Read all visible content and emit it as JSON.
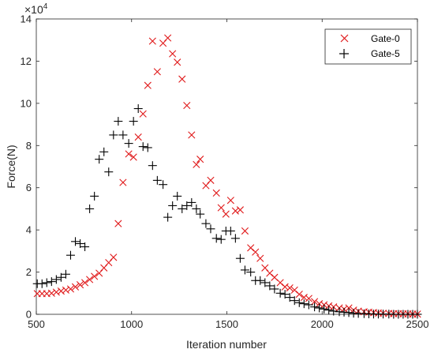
{
  "chart_data": {
    "type": "scatter",
    "title": "",
    "xlabel": "Iteration number",
    "ylabel": "Force(N)",
    "xlim": [
      500,
      2500
    ],
    "ylim": [
      0,
      14
    ],
    "y_multiplier": {
      "base": "×10",
      "exponent": "4"
    },
    "x_ticks": [
      500,
      1000,
      1500,
      2000,
      2500
    ],
    "y_ticks": [
      0,
      2,
      4,
      6,
      8,
      10,
      12,
      14
    ],
    "x_tick_labels": [
      "500",
      "1000",
      "1500",
      "2000",
      "2500"
    ],
    "y_tick_labels": [
      "0",
      "2",
      "4",
      "6",
      "8",
      "10",
      "12",
      "14"
    ],
    "grid": false,
    "legend_position": "top-right",
    "series": [
      {
        "name": "Gate-0",
        "marker": "x",
        "color": "#e0191a",
        "points": [
          [
            505,
            0.98
          ],
          [
            530,
            0.98
          ],
          [
            555,
            0.98
          ],
          [
            580,
            1.0
          ],
          [
            605,
            1.05
          ],
          [
            630,
            1.1
          ],
          [
            655,
            1.15
          ],
          [
            680,
            1.2
          ],
          [
            705,
            1.3
          ],
          [
            730,
            1.4
          ],
          [
            755,
            1.5
          ],
          [
            780,
            1.65
          ],
          [
            805,
            1.8
          ],
          [
            830,
            1.95
          ],
          [
            855,
            2.2
          ],
          [
            880,
            2.45
          ],
          [
            905,
            2.7
          ],
          [
            930,
            4.3
          ],
          [
            955,
            6.25
          ],
          [
            985,
            7.6
          ],
          [
            1010,
            7.45
          ],
          [
            1035,
            8.4
          ],
          [
            1060,
            9.5
          ],
          [
            1085,
            10.85
          ],
          [
            1110,
            12.95
          ],
          [
            1135,
            11.5
          ],
          [
            1165,
            12.85
          ],
          [
            1190,
            13.1
          ],
          [
            1215,
            12.35
          ],
          [
            1240,
            11.95
          ],
          [
            1265,
            11.15
          ],
          [
            1290,
            9.9
          ],
          [
            1315,
            8.5
          ],
          [
            1340,
            7.1
          ],
          [
            1360,
            7.35
          ],
          [
            1390,
            6.1
          ],
          [
            1415,
            6.35
          ],
          [
            1445,
            5.75
          ],
          [
            1470,
            5.05
          ],
          [
            1495,
            4.75
          ],
          [
            1520,
            5.4
          ],
          [
            1545,
            4.9
          ],
          [
            1570,
            4.95
          ],
          [
            1595,
            3.95
          ],
          [
            1625,
            3.15
          ],
          [
            1650,
            2.95
          ],
          [
            1675,
            2.65
          ],
          [
            1700,
            2.2
          ],
          [
            1725,
            1.95
          ],
          [
            1750,
            1.75
          ],
          [
            1780,
            1.5
          ],
          [
            1805,
            1.3
          ],
          [
            1830,
            1.25
          ],
          [
            1855,
            1.15
          ],
          [
            1880,
            0.95
          ],
          [
            1905,
            0.8
          ],
          [
            1930,
            0.75
          ],
          [
            1960,
            0.6
          ],
          [
            1985,
            0.5
          ],
          [
            2010,
            0.45
          ],
          [
            2035,
            0.4
          ],
          [
            2060,
            0.35
          ],
          [
            2090,
            0.3
          ],
          [
            2115,
            0.25
          ],
          [
            2140,
            0.3
          ],
          [
            2165,
            0.2
          ],
          [
            2190,
            0.15
          ],
          [
            2220,
            0.12
          ],
          [
            2245,
            0.1
          ],
          [
            2270,
            0.08
          ],
          [
            2295,
            0.06
          ],
          [
            2320,
            0.05
          ],
          [
            2350,
            0.04
          ],
          [
            2375,
            0.03
          ],
          [
            2400,
            0.03
          ],
          [
            2425,
            0.02
          ],
          [
            2450,
            0.02
          ],
          [
            2475,
            0.01
          ],
          [
            2500,
            0.01
          ]
        ]
      },
      {
        "name": "Gate-5",
        "marker": "+",
        "color": "#000000",
        "points": [
          [
            505,
            1.45
          ],
          [
            530,
            1.45
          ],
          [
            555,
            1.5
          ],
          [
            580,
            1.55
          ],
          [
            605,
            1.65
          ],
          [
            630,
            1.75
          ],
          [
            655,
            1.9
          ],
          [
            680,
            2.8
          ],
          [
            705,
            3.45
          ],
          [
            730,
            3.35
          ],
          [
            755,
            3.2
          ],
          [
            780,
            5.0
          ],
          [
            805,
            5.6
          ],
          [
            830,
            7.35
          ],
          [
            855,
            7.7
          ],
          [
            880,
            6.75
          ],
          [
            905,
            8.5
          ],
          [
            930,
            9.15
          ],
          [
            955,
            8.5
          ],
          [
            985,
            8.1
          ],
          [
            1010,
            9.15
          ],
          [
            1035,
            9.75
          ],
          [
            1060,
            7.95
          ],
          [
            1085,
            7.9
          ],
          [
            1110,
            7.05
          ],
          [
            1135,
            6.35
          ],
          [
            1165,
            6.15
          ],
          [
            1190,
            4.6
          ],
          [
            1215,
            5.15
          ],
          [
            1240,
            5.6
          ],
          [
            1265,
            5.0
          ],
          [
            1290,
            5.15
          ],
          [
            1315,
            5.3
          ],
          [
            1340,
            5.0
          ],
          [
            1360,
            4.75
          ],
          [
            1390,
            4.3
          ],
          [
            1415,
            4.05
          ],
          [
            1445,
            3.6
          ],
          [
            1470,
            3.55
          ],
          [
            1495,
            3.95
          ],
          [
            1520,
            3.95
          ],
          [
            1545,
            3.6
          ],
          [
            1570,
            2.65
          ],
          [
            1595,
            2.1
          ],
          [
            1625,
            2.0
          ],
          [
            1650,
            1.6
          ],
          [
            1675,
            1.6
          ],
          [
            1700,
            1.5
          ],
          [
            1725,
            1.35
          ],
          [
            1750,
            1.2
          ],
          [
            1780,
            1.0
          ],
          [
            1805,
            0.95
          ],
          [
            1830,
            0.8
          ],
          [
            1855,
            0.65
          ],
          [
            1880,
            0.55
          ],
          [
            1905,
            0.5
          ],
          [
            1930,
            0.45
          ],
          [
            1960,
            0.35
          ],
          [
            1985,
            0.3
          ],
          [
            2010,
            0.25
          ],
          [
            2035,
            0.2
          ],
          [
            2060,
            0.15
          ],
          [
            2090,
            0.12
          ],
          [
            2115,
            0.1
          ],
          [
            2140,
            0.08
          ],
          [
            2165,
            0.05
          ],
          [
            2190,
            0.04
          ],
          [
            2220,
            0.03
          ],
          [
            2245,
            0.02
          ],
          [
            2270,
            0.01
          ],
          [
            2295,
            0.01
          ],
          [
            2320,
            0.01
          ],
          [
            2350,
            0.01
          ],
          [
            2375,
            0.0
          ],
          [
            2400,
            0.0
          ],
          [
            2425,
            0.0
          ],
          [
            2450,
            0.0
          ],
          [
            2475,
            0.0
          ],
          [
            2500,
            0.0
          ]
        ]
      }
    ]
  }
}
